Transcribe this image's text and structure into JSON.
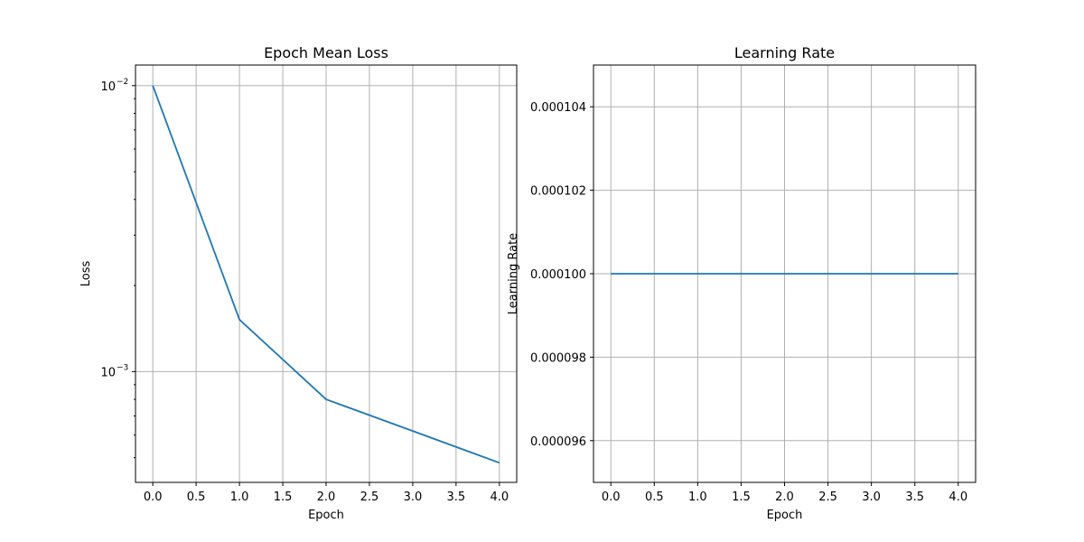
{
  "chart_data": [
    {
      "type": "line",
      "title": "Epoch Mean Loss",
      "xlabel": "Epoch",
      "ylabel": "Loss",
      "yscale": "log",
      "x": [
        0,
        1,
        2,
        3,
        4
      ],
      "series": [
        {
          "values": [
            0.01,
            0.00152,
            0.0008,
            0.00062,
            0.00048
          ]
        }
      ],
      "xlim": [
        -0.2,
        4.2
      ],
      "ylim": [
        0.00041,
        0.0118
      ],
      "xticks": [
        0,
        0.5,
        1.0,
        1.5,
        2.0,
        2.5,
        3.0,
        3.5,
        4.0
      ],
      "xtick_labels": [
        "0.0",
        "0.5",
        "1.0",
        "1.5",
        "2.0",
        "2.5",
        "3.0",
        "3.5",
        "4.0"
      ],
      "yticks": [
        0.01,
        0.001
      ],
      "ytick_labels": [
        {
          "base": "10",
          "exp": "−2"
        },
        {
          "base": "10",
          "exp": "−3"
        }
      ],
      "grid": true,
      "color": "#1f77b4"
    },
    {
      "type": "line",
      "title": "Learning Rate",
      "xlabel": "Epoch",
      "ylabel": "Learning Rate",
      "yscale": "linear",
      "x": [
        0,
        1,
        2,
        3,
        4
      ],
      "series": [
        {
          "values": [
            0.0001,
            0.0001,
            0.0001,
            0.0001,
            0.0001
          ]
        }
      ],
      "xlim": [
        -0.2,
        4.2
      ],
      "ylim": [
        9.5e-05,
        0.000105
      ],
      "xticks": [
        0,
        0.5,
        1.0,
        1.5,
        2.0,
        2.5,
        3.0,
        3.5,
        4.0
      ],
      "xtick_labels": [
        "0.0",
        "0.5",
        "1.0",
        "1.5",
        "2.0",
        "2.5",
        "3.0",
        "3.5",
        "4.0"
      ],
      "yticks": [
        9.6e-05,
        9.8e-05,
        0.0001,
        0.000102,
        0.000104
      ],
      "ytick_labels": [
        "0.000096",
        "0.000098",
        "0.000100",
        "0.000102",
        "0.000104"
      ],
      "grid": true,
      "color": "#1f77b4"
    }
  ]
}
